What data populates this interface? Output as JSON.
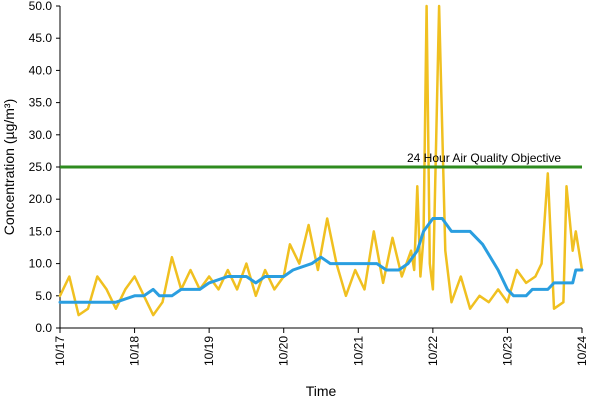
{
  "chart_data": {
    "type": "line",
    "title": "",
    "xlabel": "Time",
    "ylabel": "Concentration (µg/m³)",
    "ylim": [
      0,
      50
    ],
    "yticks": [
      "0.0",
      "5.0",
      "10.0",
      "15.0",
      "20.0",
      "25.0",
      "30.0",
      "35.0",
      "40.0",
      "45.0",
      "50.0"
    ],
    "xlim": [
      "10/17",
      "10/24"
    ],
    "xticks": [
      "10/17",
      "10/18",
      "10/19",
      "10/20",
      "10/21",
      "10/22",
      "10/23",
      "10/24"
    ],
    "grid": false,
    "legend": "none",
    "annotation": {
      "text": "24 Hour Air Quality Objective",
      "y": 25
    },
    "colors": {
      "hourly": "#f0c020",
      "rolling": "#2a9ee0",
      "objective": "#2e8b1f"
    },
    "series": [
      {
        "style": "hourly",
        "points": [
          [
            "10/17 00:00",
            5
          ],
          [
            "10/17 03:00",
            8
          ],
          [
            "10/17 06:00",
            2
          ],
          [
            "10/17 09:00",
            3
          ],
          [
            "10/17 12:00",
            8
          ],
          [
            "10/17 15:00",
            6
          ],
          [
            "10/17 18:00",
            3
          ],
          [
            "10/17 21:00",
            6
          ],
          [
            "10/18 00:00",
            8
          ],
          [
            "10/18 03:00",
            5
          ],
          [
            "10/18 06:00",
            2
          ],
          [
            "10/18 09:00",
            4
          ],
          [
            "10/18 12:00",
            11
          ],
          [
            "10/18 15:00",
            6
          ],
          [
            "10/18 18:00",
            9
          ],
          [
            "10/18 21:00",
            6
          ],
          [
            "10/19 00:00",
            8
          ],
          [
            "10/19 03:00",
            6
          ],
          [
            "10/19 06:00",
            9
          ],
          [
            "10/19 09:00",
            6
          ],
          [
            "10/19 12:00",
            10
          ],
          [
            "10/19 15:00",
            5
          ],
          [
            "10/19 18:00",
            9
          ],
          [
            "10/19 21:00",
            6
          ],
          [
            "10/20 00:00",
            8
          ],
          [
            "10/20 02:00",
            13
          ],
          [
            "10/20 05:00",
            10
          ],
          [
            "10/20 08:00",
            16
          ],
          [
            "10/20 11:00",
            9
          ],
          [
            "10/20 14:00",
            17
          ],
          [
            "10/20 17:00",
            10
          ],
          [
            "10/20 20:00",
            5
          ],
          [
            "10/20 23:00",
            9
          ],
          [
            "10/21 02:00",
            6
          ],
          [
            "10/21 05:00",
            15
          ],
          [
            "10/21 08:00",
            7
          ],
          [
            "10/21 11:00",
            14
          ],
          [
            "10/21 14:00",
            8
          ],
          [
            "10/21 17:00",
            12
          ],
          [
            "10/21 18:00",
            9
          ],
          [
            "10/21 19:00",
            22
          ],
          [
            "10/21 20:00",
            8
          ],
          [
            "10/21 21:00",
            14
          ],
          [
            "10/21 22:00",
            50
          ],
          [
            "10/21 23:00",
            10
          ],
          [
            "10/22 00:00",
            6
          ],
          [
            "10/22 02:00",
            50
          ],
          [
            "10/22 04:00",
            12
          ],
          [
            "10/22 06:00",
            4
          ],
          [
            "10/22 09:00",
            8
          ],
          [
            "10/22 12:00",
            3
          ],
          [
            "10/22 15:00",
            5
          ],
          [
            "10/22 18:00",
            4
          ],
          [
            "10/22 21:00",
            6
          ],
          [
            "10/23 00:00",
            4
          ],
          [
            "10/23 03:00",
            9
          ],
          [
            "10/23 06:00",
            7
          ],
          [
            "10/23 09:00",
            8
          ],
          [
            "10/23 11:00",
            10
          ],
          [
            "10/23 13:00",
            24
          ],
          [
            "10/23 15:00",
            3
          ],
          [
            "10/23 18:00",
            4
          ],
          [
            "10/23 19:00",
            22
          ],
          [
            "10/23 21:00",
            12
          ],
          [
            "10/23 22:00",
            15
          ],
          [
            "10/24 00:00",
            9
          ]
        ]
      },
      {
        "style": "rolling",
        "points": [
          [
            "10/17 00:00",
            4
          ],
          [
            "10/17 18:00",
            4
          ],
          [
            "10/18 00:00",
            5
          ],
          [
            "10/18 03:00",
            5
          ],
          [
            "10/18 06:00",
            6
          ],
          [
            "10/18 08:00",
            5
          ],
          [
            "10/18 12:00",
            5
          ],
          [
            "10/18 15:00",
            6
          ],
          [
            "10/18 21:00",
            6
          ],
          [
            "10/19 00:00",
            7
          ],
          [
            "10/19 06:00",
            8
          ],
          [
            "10/19 12:00",
            8
          ],
          [
            "10/19 15:00",
            7
          ],
          [
            "10/19 18:00",
            8
          ],
          [
            "10/20 00:00",
            8
          ],
          [
            "10/20 03:00",
            9
          ],
          [
            "10/20 09:00",
            10
          ],
          [
            "10/20 12:00",
            11
          ],
          [
            "10/20 15:00",
            10
          ],
          [
            "10/21 06:00",
            10
          ],
          [
            "10/21 09:00",
            9
          ],
          [
            "10/21 13:00",
            9
          ],
          [
            "10/21 16:00",
            10
          ],
          [
            "10/21 19:00",
            12
          ],
          [
            "10/21 21:00",
            15
          ],
          [
            "10/22 00:00",
            17
          ],
          [
            "10/22 03:00",
            17
          ],
          [
            "10/22 06:00",
            15
          ],
          [
            "10/22 12:00",
            15
          ],
          [
            "10/22 16:00",
            13
          ],
          [
            "10/22 21:00",
            9
          ],
          [
            "10/23 00:00",
            6
          ],
          [
            "10/23 02:00",
            5
          ],
          [
            "10/23 06:00",
            5
          ],
          [
            "10/23 08:00",
            6
          ],
          [
            "10/23 13:00",
            6
          ],
          [
            "10/23 15:00",
            7
          ],
          [
            "10/23 21:00",
            7
          ],
          [
            "10/23 22:00",
            9
          ],
          [
            "10/24 00:00",
            9
          ]
        ]
      }
    ]
  }
}
